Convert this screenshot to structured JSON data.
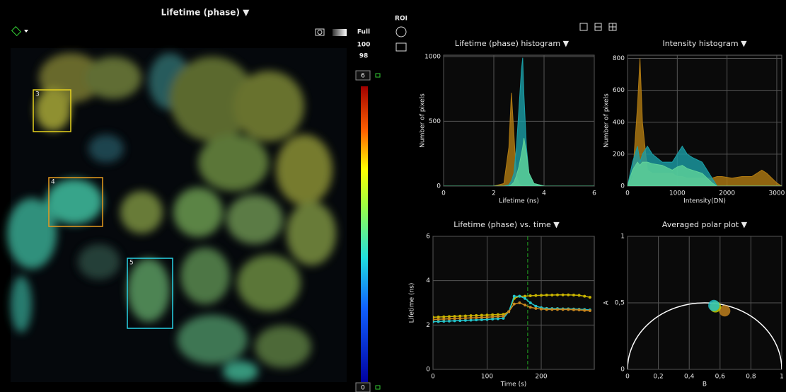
{
  "header": {
    "title": "Lifetime (phase) ▼"
  },
  "image_panel": {
    "scale_labels": [
      "Full",
      "100",
      "98"
    ],
    "roi_label": "ROI",
    "colorbar": {
      "max": 6,
      "min": 0
    },
    "rois": [
      {
        "label": "3",
        "color": "#e6d21e"
      },
      {
        "label": "4",
        "color": "#e69a1e"
      },
      {
        "label": "5",
        "color": "#28d2e6"
      }
    ]
  },
  "chart_data": [
    {
      "type": "area",
      "title": "Lifetime (phase) histogram ▼",
      "x_label": "Lifetime (ns)",
      "y_label": "Number of pixels",
      "x": [
        0,
        2.0,
        2.4,
        2.6,
        2.7,
        2.8,
        2.9,
        3.0,
        3.1,
        3.15,
        3.2,
        3.3,
        3.4,
        3.6,
        4.0,
        6
      ],
      "series": [
        {
          "color": "#b07a12",
          "values": [
            0,
            0,
            20,
            300,
            720,
            400,
            80,
            20,
            5,
            0,
            0,
            0,
            0,
            0,
            0,
            0
          ]
        },
        {
          "color": "#1a9ea6",
          "values": [
            0,
            0,
            0,
            10,
            40,
            100,
            300,
            600,
            900,
            990,
            700,
            300,
            100,
            20,
            0,
            0
          ]
        },
        {
          "color": "#5fd39a",
          "values": [
            0,
            0,
            0,
            0,
            10,
            30,
            80,
            150,
            250,
            300,
            370,
            250,
            100,
            20,
            0,
            0
          ]
        }
      ],
      "xlim": [
        0,
        6
      ],
      "xticks": [
        0,
        2,
        4,
        6
      ],
      "ylim": [
        0,
        1010
      ],
      "yticks": [
        0,
        500,
        1000
      ],
      "grid": true
    },
    {
      "type": "area",
      "title": "Intensity histogram ▼",
      "x_label": "Intensity(DN)",
      "y_label": "Number of pixels",
      "x": [
        0,
        100,
        200,
        250,
        300,
        400,
        500,
        700,
        900,
        1000,
        1100,
        1200,
        1300,
        1500,
        1700,
        1800,
        1900,
        2100,
        2300,
        2500,
        2700,
        2800,
        3000,
        3100
      ],
      "series": [
        {
          "color": "#b07a12",
          "values": [
            0,
            50,
            500,
            800,
            400,
            100,
            80,
            80,
            80,
            60,
            60,
            50,
            50,
            50,
            50,
            60,
            60,
            50,
            60,
            60,
            100,
            80,
            20,
            0
          ]
        },
        {
          "color": "#1a9ea6",
          "values": [
            0,
            150,
            250,
            150,
            200,
            250,
            200,
            150,
            150,
            200,
            250,
            200,
            180,
            150,
            50,
            0,
            0,
            0,
            0,
            0,
            0,
            0,
            0,
            0
          ]
        },
        {
          "color": "#5fd39a",
          "values": [
            0,
            100,
            150,
            130,
            150,
            150,
            140,
            130,
            100,
            120,
            130,
            110,
            100,
            80,
            20,
            0,
            0,
            0,
            0,
            0,
            0,
            0,
            0,
            0
          ]
        }
      ],
      "xlim": [
        0,
        3100
      ],
      "xticks": [
        0,
        1000,
        2000,
        3000
      ],
      "ylim": [
        0,
        820
      ],
      "yticks": [
        0,
        200,
        400,
        600,
        800
      ],
      "grid": true
    },
    {
      "type": "line",
      "title": "Lifetime (phase) vs. time ▼",
      "x_label": "Time (s)",
      "y_label": "Lifetime (ns)",
      "x": [
        0,
        10,
        20,
        30,
        40,
        50,
        60,
        70,
        80,
        90,
        100,
        110,
        120,
        130,
        140,
        150,
        160,
        170,
        180,
        190,
        200,
        210,
        220,
        230,
        240,
        250,
        260,
        270,
        280,
        290
      ],
      "series": [
        {
          "color": "#c8b400",
          "values": [
            2.35,
            2.36,
            2.37,
            2.38,
            2.39,
            2.4,
            2.41,
            2.42,
            2.43,
            2.44,
            2.45,
            2.46,
            2.47,
            2.48,
            2.6,
            3.2,
            3.3,
            3.3,
            3.32,
            3.33,
            3.34,
            3.35,
            3.35,
            3.36,
            3.36,
            3.36,
            3.35,
            3.34,
            3.3,
            3.25
          ]
        },
        {
          "color": "#22c4cc",
          "values": [
            2.15,
            2.16,
            2.17,
            2.18,
            2.19,
            2.2,
            2.21,
            2.22,
            2.23,
            2.24,
            2.25,
            2.27,
            2.28,
            2.3,
            2.6,
            3.3,
            3.3,
            3.2,
            3.0,
            2.85,
            2.78,
            2.75,
            2.74,
            2.74,
            2.73,
            2.73,
            2.72,
            2.71,
            2.7,
            2.68
          ]
        },
        {
          "color": "#c8861e",
          "values": [
            2.25,
            2.26,
            2.27,
            2.28,
            2.29,
            2.3,
            2.31,
            2.32,
            2.33,
            2.34,
            2.35,
            2.37,
            2.38,
            2.4,
            2.6,
            2.95,
            3.0,
            2.9,
            2.8,
            2.75,
            2.72,
            2.7,
            2.7,
            2.7,
            2.7,
            2.7,
            2.69,
            2.68,
            2.66,
            2.65
          ]
        }
      ],
      "cursor_x": 175,
      "xlim": [
        0,
        298
      ],
      "xticks": [
        0,
        100,
        200
      ],
      "ylim": [
        0,
        6
      ],
      "yticks": [
        0,
        2,
        4,
        6
      ],
      "grid": true
    },
    {
      "type": "scatter",
      "title": "Averaged polar plot ▼",
      "x_label": "B",
      "y_label": "A",
      "x": [
        0.63,
        0.57,
        0.56
      ],
      "values": [
        0.44,
        0.47,
        0.48
      ],
      "colors": [
        "#c8861e",
        "#c8d400",
        "#22c4cc"
      ],
      "xlim": [
        0,
        1
      ],
      "xticks": [
        0,
        {
          "value": 0.2,
          "label": "0,2"
        },
        {
          "value": 0.4,
          "label": "0,4"
        },
        {
          "value": 0.6,
          "label": "0,6"
        },
        {
          "value": 0.8,
          "label": "0,8"
        },
        1
      ],
      "ylim": [
        0,
        1
      ],
      "yticks": [
        0,
        {
          "value": 0.5,
          "label": "0,5"
        },
        1
      ],
      "grid": true
    }
  ]
}
